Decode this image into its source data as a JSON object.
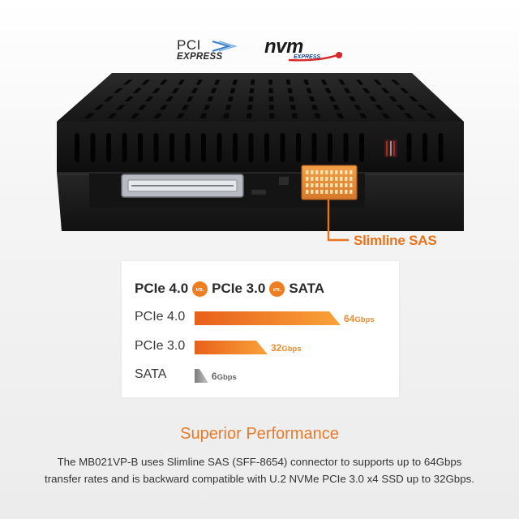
{
  "logos": {
    "pcie_line1": "PCI",
    "pcie_line2": "EXPRESS",
    "nvm_line1": "nvm",
    "nvm_line2": "EXPRESS"
  },
  "callout": {
    "label": "Slimline SAS"
  },
  "comparison": {
    "title_parts": [
      "PCIe 4.0",
      "vs.",
      "PCIe 3.0",
      "vs.",
      "SATA"
    ],
    "rows": [
      {
        "label": "PCIe 4.0",
        "value": "64",
        "unit": "Gbps",
        "gbps": 64,
        "color_start": "#f9a23a",
        "color_end": "#e8601a",
        "value_color": "#f08a2a"
      },
      {
        "label": "PCIe 3.0",
        "value": "32",
        "unit": "Gbps",
        "gbps": 32,
        "color_start": "#f9a23a",
        "color_end": "#e8601a",
        "value_color": "#f08a2a"
      },
      {
        "label": "SATA",
        "value": "6",
        "unit": "Gbps",
        "gbps": 6,
        "color_start": "#c8c8c8",
        "color_end": "#7a7a7a",
        "value_color": "#666666"
      }
    ]
  },
  "footer": {
    "headline": "Superior Performance",
    "line1": "The MB021VP-B uses Slimline SAS (SFF-8654) connector to supports up to 64Gbps",
    "line2": "transfer rates and is backward compatible with U.2 NVMe PCIe 3.0 x4 SSD up to 32Gbps."
  }
}
